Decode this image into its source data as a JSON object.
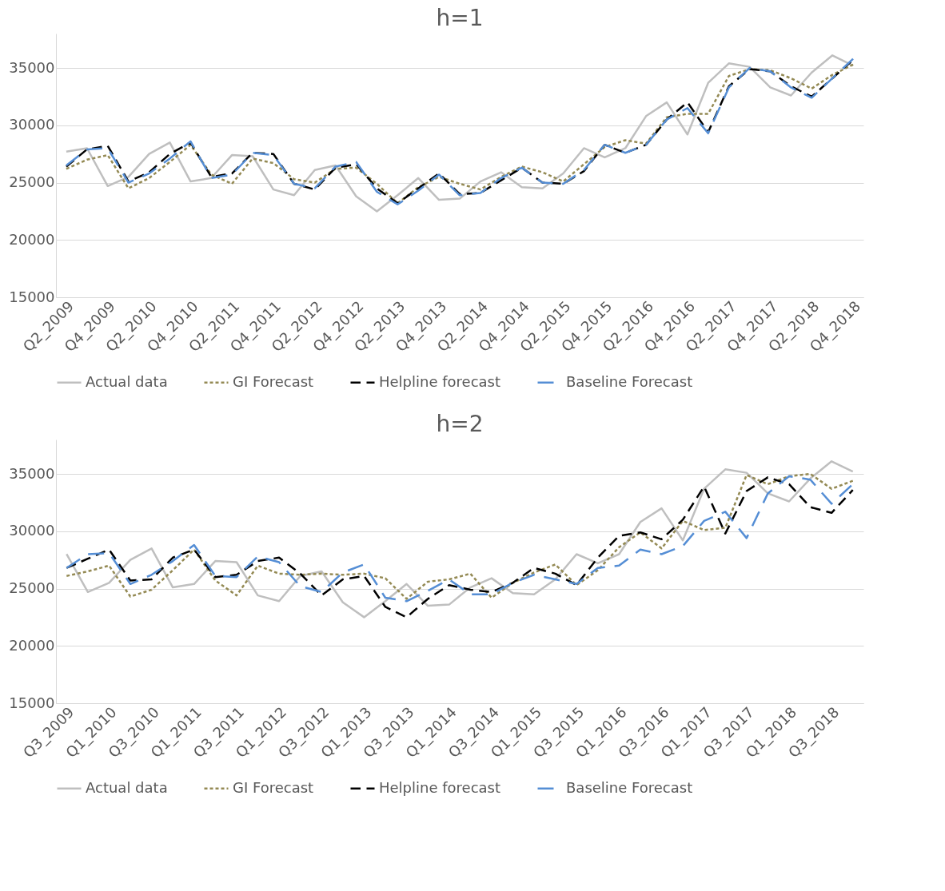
{
  "chart_data": [
    {
      "type": "line",
      "title": "h=1",
      "legend": "bottom",
      "grid": "y",
      "ylim": [
        15000,
        38000
      ],
      "yticks": [
        15000,
        20000,
        25000,
        30000,
        35000
      ],
      "categories": [
        "Q2_2009",
        null,
        "Q4_2009",
        null,
        "Q2_2010",
        null,
        "Q4_2010",
        null,
        "Q2_2011",
        null,
        "Q4_2011",
        null,
        "Q2_2012",
        null,
        "Q4_2012",
        null,
        "Q2_2013",
        null,
        "Q4_2013",
        null,
        "Q2_2014",
        null,
        "Q4_2014",
        null,
        "Q2_2015",
        null,
        "Q4_2015",
        null,
        "Q2_2016",
        null,
        "Q4_2016",
        null,
        "Q2_2017",
        null,
        "Q4_2017",
        null,
        "Q2_2018",
        null,
        "Q4_2018"
      ],
      "series": [
        {
          "name": "Actual data",
          "color": "#bfbfbf",
          "line_style": "solid",
          "values": [
            27700,
            28000,
            24700,
            25500,
            27500,
            28500,
            25100,
            25400,
            27400,
            27300,
            24400,
            23900,
            26100,
            26500,
            23800,
            22500,
            23900,
            25400,
            23500,
            23600,
            25100,
            25900,
            24600,
            24500,
            25800,
            28000,
            27200,
            28000,
            30800,
            32000,
            29200,
            33700,
            35400,
            35100,
            33300,
            32600,
            34600,
            36100,
            35200
          ]
        },
        {
          "name": "GI Forecast",
          "color": "#948a54",
          "line_style": "dotted",
          "values": [
            26200,
            27000,
            27400,
            24500,
            25400,
            26800,
            28300,
            25700,
            24900,
            27100,
            26700,
            25300,
            25000,
            26200,
            26300,
            24900,
            23200,
            24600,
            25500,
            24900,
            24400,
            25500,
            26400,
            25900,
            25100,
            26600,
            28100,
            28700,
            28400,
            30700,
            31000,
            31000,
            34300,
            34900,
            34800,
            34100,
            33200,
            34400,
            35300
          ]
        },
        {
          "name": "Helpline forecast",
          "color": "#000000",
          "line_style": "dashed",
          "values": [
            26400,
            27900,
            28200,
            25100,
            25900,
            27500,
            28500,
            25500,
            25800,
            27600,
            27500,
            24900,
            24400,
            26300,
            26600,
            24500,
            23200,
            24500,
            25800,
            24000,
            24100,
            25200,
            26300,
            25000,
            24900,
            26000,
            28300,
            27600,
            28300,
            30500,
            32000,
            29400,
            33400,
            34900,
            34700,
            33400,
            32500,
            34100,
            35700
          ]
        },
        {
          "name": "Baseline Forecast",
          "color": "#558ed5",
          "line_style": "dashed",
          "values": [
            26500,
            27900,
            28000,
            25000,
            25800,
            27100,
            28600,
            25400,
            25700,
            27600,
            27400,
            24900,
            24500,
            26400,
            26800,
            24200,
            23100,
            24300,
            25700,
            23900,
            24100,
            25400,
            26300,
            25000,
            24900,
            26100,
            28300,
            27600,
            28300,
            30500,
            31500,
            29300,
            33300,
            35000,
            34700,
            33300,
            32400,
            34100,
            35800
          ]
        }
      ]
    },
    {
      "type": "line",
      "title": "h=2",
      "legend": "bottom",
      "grid": "y",
      "ylim": [
        15000,
        38000
      ],
      "yticks": [
        15000,
        20000,
        25000,
        30000,
        35000
      ],
      "categories": [
        "Q3_2009",
        null,
        "Q1_2010",
        null,
        "Q3_2010",
        null,
        "Q1_2011",
        null,
        "Q3_2011",
        null,
        "Q1_2012",
        null,
        "Q3_2012",
        null,
        "Q1_2013",
        null,
        "Q3_2013",
        null,
        "Q1_2014",
        null,
        "Q3_2014",
        null,
        "Q1_2015",
        null,
        "Q3_2015",
        null,
        "Q1_2016",
        null,
        "Q3_2016",
        null,
        "Q1_2017",
        null,
        "Q3_2017",
        null,
        "Q1_2018",
        null,
        "Q3_2018",
        null
      ],
      "series": [
        {
          "name": "Actual data",
          "color": "#bfbfbf",
          "line_style": "solid",
          "values": [
            28000,
            24700,
            25500,
            27500,
            28500,
            25100,
            25400,
            27400,
            27300,
            24400,
            23900,
            26100,
            26500,
            23800,
            22500,
            23900,
            25400,
            23500,
            23600,
            25100,
            25900,
            24600,
            24500,
            25800,
            28000,
            27200,
            28000,
            30800,
            32000,
            29200,
            33700,
            35400,
            35100,
            33300,
            32600,
            34600,
            36100,
            35200
          ]
        },
        {
          "name": "GI Forecast",
          "color": "#948a54",
          "line_style": "dotted",
          "values": [
            26100,
            26500,
            27000,
            24300,
            24900,
            26600,
            28400,
            25700,
            24400,
            27000,
            26300,
            26200,
            26300,
            26200,
            26300,
            25900,
            24100,
            25600,
            25800,
            26300,
            24200,
            25500,
            26400,
            27100,
            25300,
            26600,
            28600,
            29900,
            28500,
            30900,
            30100,
            30300,
            34900,
            34100,
            34800,
            35000,
            33700,
            34400
          ]
        },
        {
          "name": "Helpline forecast",
          "color": "#000000",
          "line_style": "dashed",
          "values": [
            26800,
            27600,
            28400,
            25700,
            25800,
            27700,
            28400,
            26000,
            26200,
            27400,
            27700,
            26300,
            24400,
            25800,
            26100,
            23400,
            22500,
            24100,
            25300,
            24900,
            24700,
            25500,
            26800,
            26300,
            25300,
            27700,
            29600,
            29900,
            29300,
            31000,
            33900,
            29800,
            33500,
            34700,
            34100,
            32100,
            31600,
            33600
          ]
        },
        {
          "name": "Baseline Forecast",
          "color": "#558ed5",
          "line_style": "dashed",
          "values": [
            26800,
            28000,
            28100,
            25400,
            26200,
            27400,
            28800,
            26100,
            26000,
            27800,
            27300,
            25200,
            24700,
            26400,
            27100,
            24200,
            23900,
            24800,
            25800,
            24500,
            24500,
            25500,
            26200,
            25800,
            25400,
            26800,
            27000,
            28400,
            28000,
            28700,
            30900,
            31700,
            29400,
            33300,
            34800,
            34500,
            32400,
            34100
          ]
        }
      ]
    }
  ]
}
